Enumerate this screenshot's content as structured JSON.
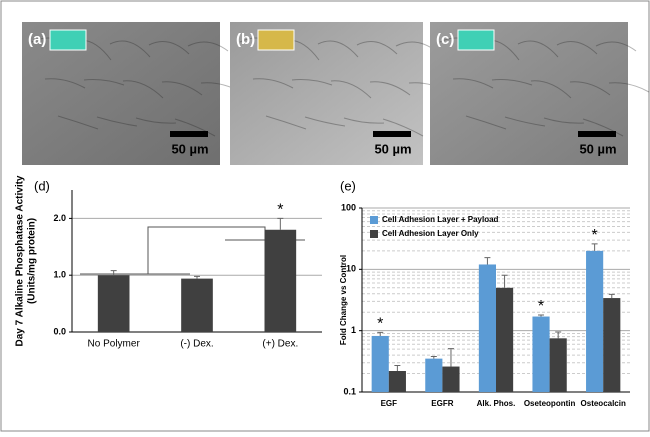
{
  "panels": [
    {
      "label": "(a)",
      "scale_bar": "50 µm"
    },
    {
      "label": "(b)",
      "scale_bar": "50 µm"
    },
    {
      "label": "(c)",
      "scale_bar": "50 µm"
    }
  ],
  "chart_data": [
    {
      "type": "bar",
      "panel_label": "(d)",
      "ylabel": [
        "Day 7 Alkaline Phosphatase Activity",
        "(Units/mg protein)"
      ],
      "categories": [
        "No Polymer",
        "(-) Dex.",
        "(+) Dex."
      ],
      "values": [
        1.0,
        0.94,
        1.8
      ],
      "errors": [
        0.08,
        0.04,
        0.2
      ],
      "significance": [
        null,
        null,
        "*"
      ],
      "color": "#404040",
      "ylim": [
        0,
        2.5
      ],
      "yticks": [
        {
          "value": 0,
          "label": "0.0"
        },
        {
          "value": 1,
          "label": "1.0"
        },
        {
          "value": 2,
          "label": "2.0"
        }
      ],
      "grid": true
    },
    {
      "type": "bar",
      "panel_label": "(e)",
      "ylabel": [
        "Fold Change vs Control"
      ],
      "categories": [
        "EGF",
        "EGFR",
        "Alk. Phos.",
        "Oseteopontin",
        "Osteocalcin"
      ],
      "series": [
        {
          "name": "Cell Adhesion Layer + Payload",
          "color": "#5b9bd5",
          "values": [
            0.82,
            0.35,
            12,
            1.7,
            20
          ],
          "errors": [
            0.12,
            0.03,
            3.5,
            0.1,
            6
          ],
          "significance": [
            "*",
            null,
            null,
            "*",
            "*"
          ]
        },
        {
          "name": "Cell Adhesion Layer Only",
          "color": "#404040",
          "values": [
            0.22,
            0.26,
            5,
            0.75,
            3.4
          ],
          "errors": [
            0.05,
            0.25,
            3,
            0.2,
            0.5
          ],
          "significance": [
            null,
            null,
            null,
            null,
            null
          ]
        }
      ],
      "log_scale": true,
      "ylim": [
        0.1,
        100
      ],
      "yticks": [
        0.1,
        1,
        10,
        100
      ],
      "grid": true,
      "legend": "top-left"
    }
  ]
}
